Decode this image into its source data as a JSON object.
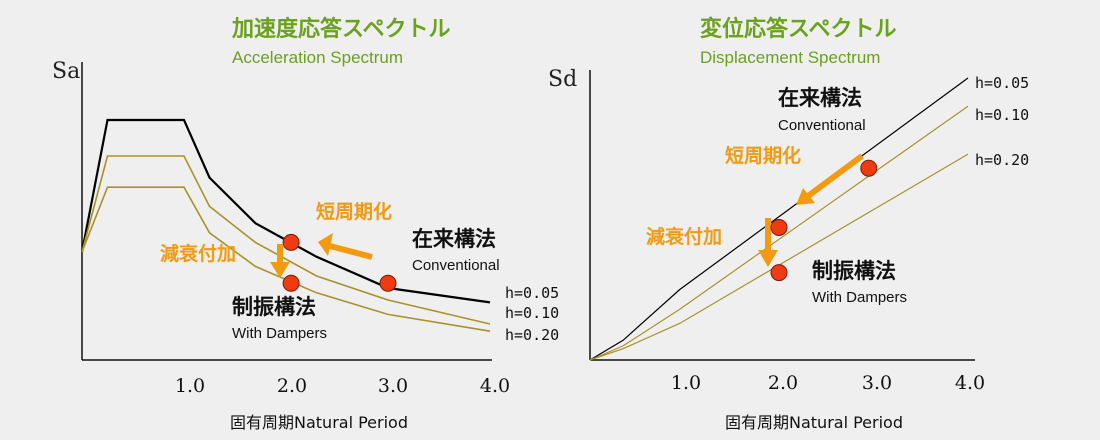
{
  "colors": {
    "background": "#efefef",
    "title": "#6aa11d",
    "arrow": "#f39a10",
    "point": "#ee3b12",
    "line_h005": "#000000",
    "line_other": "#a8922a"
  },
  "chart_data": [
    {
      "type": "line",
      "title": "加速度応答スペクトル",
      "subtitle": "Acceleration Spectrum",
      "ylabel": "Sa",
      "xlabel": "固有周期Natural Period",
      "xticks": [
        "1.0",
        "2.0",
        "3.0",
        "4.0"
      ],
      "xlim": [
        0,
        4.0
      ],
      "ylim": [
        0,
        1.05
      ],
      "series": [
        {
          "name": "h=0.05",
          "x": [
            0,
            0.25,
            1.0,
            1.25,
            1.7,
            2.3,
            3.0,
            4.0
          ],
          "y": [
            0.45,
            1.0,
            1.0,
            0.76,
            0.57,
            0.43,
            0.3,
            0.24
          ]
        },
        {
          "name": "h=0.10",
          "x": [
            0,
            0.25,
            1.0,
            1.25,
            1.7,
            2.3,
            3.0,
            4.0
          ],
          "y": [
            0.45,
            0.85,
            0.85,
            0.64,
            0.49,
            0.35,
            0.25,
            0.15
          ]
        },
        {
          "name": "h=0.20",
          "x": [
            0,
            0.25,
            1.0,
            1.25,
            1.7,
            2.3,
            3.0,
            4.0
          ],
          "y": [
            0.45,
            0.72,
            0.72,
            0.53,
            0.39,
            0.28,
            0.19,
            0.12
          ]
        }
      ],
      "points": [
        {
          "role": "conventional",
          "x": 3.0,
          "y": 0.32
        },
        {
          "role": "short_period",
          "x": 2.05,
          "y": 0.49
        },
        {
          "role": "damped",
          "x": 2.05,
          "y": 0.32
        }
      ],
      "annotations": {
        "short_period": "短周期化",
        "added_damping": "減衰付加",
        "conventional_ja": "在来構法",
        "conventional_en": "Conventional",
        "damped_ja": "制振構法",
        "damped_en": "With Dampers"
      }
    },
    {
      "type": "line",
      "title": "変位応答スペクトル",
      "subtitle": "Displacement Spectrum",
      "ylabel": "Sd",
      "xlabel": "固有周期Natural Period",
      "xticks": [
        "1.0",
        "2.0",
        "3.0",
        "4.0"
      ],
      "xlim": [
        0,
        4.0
      ],
      "ylim": [
        0,
        1.0
      ],
      "series": [
        {
          "name": "h=0.05",
          "x": [
            0,
            0.35,
            0.95,
            4.0
          ],
          "y": [
            0,
            0.07,
            0.25,
            1.0
          ]
        },
        {
          "name": "h=0.10",
          "x": [
            0,
            0.35,
            0.95,
            4.0
          ],
          "y": [
            0,
            0.05,
            0.18,
            0.9
          ]
        },
        {
          "name": "h=0.20",
          "x": [
            0,
            0.35,
            0.95,
            4.0
          ],
          "y": [
            0,
            0.04,
            0.13,
            0.73
          ]
        }
      ],
      "points": [
        {
          "role": "conventional",
          "x": 2.95,
          "y": 0.68
        },
        {
          "role": "short_period",
          "x": 2.0,
          "y": 0.47
        },
        {
          "role": "damped",
          "x": 2.0,
          "y": 0.31
        }
      ],
      "annotations": {
        "short_period": "短周期化",
        "added_damping": "減衰付加",
        "conventional_ja": "在来構法",
        "conventional_en": "Conventional",
        "damped_ja": "制振構法",
        "damped_en": "With Dampers"
      }
    }
  ]
}
